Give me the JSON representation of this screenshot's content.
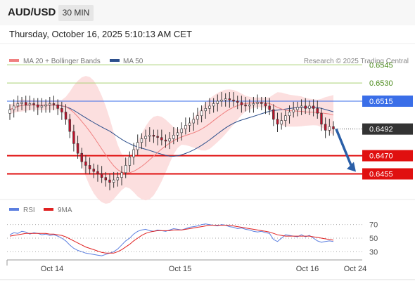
{
  "header": {
    "pair": "AUD/USD",
    "timeframe": "30 MIN",
    "datetime": "Thursday, October 16, 2025 5:10:13 AM CET"
  },
  "legend": {
    "ma20": "MA 20 + Bollinger Bands",
    "ma50": "MA 50",
    "credit": "Research © 2025 Trading Central",
    "rsi": "RSI",
    "ma9": "9MA"
  },
  "colors": {
    "ma20": "#f08080",
    "ma50": "#2c4f8c",
    "bands": "#fbd9d9",
    "resistance": "#a8d070",
    "pivot": "#3a6ee8",
    "support": "#e01010",
    "price_box": "#333333",
    "up_candle": "#ffffff",
    "down_candle": "#c0102a",
    "arrow": "#2a5fa8",
    "rsi": "#5b7fe0",
    "rsi_ma": "#e02020"
  },
  "chart_data": [
    {
      "type": "candlestick",
      "x_labels": [
        "Oct 14",
        "Oct 15",
        "Oct 16",
        "Oct 24"
      ],
      "ylim": [
        0.6435,
        0.6555
      ],
      "levels": [
        {
          "label": "0.6545",
          "value": 0.6545,
          "kind": "resistance"
        },
        {
          "label": "0.6530",
          "value": 0.653,
          "kind": "resistance"
        },
        {
          "label": "0.6515",
          "value": 0.6515,
          "kind": "pivot"
        },
        {
          "label": "0.6470",
          "value": 0.647,
          "kind": "support"
        },
        {
          "label": "0.6455",
          "value": 0.6455,
          "kind": "support"
        }
      ],
      "last_price": {
        "label": "0.6492",
        "value": 0.6492
      },
      "close_series": [
        0.6508,
        0.6511,
        0.6513,
        0.6514,
        0.6512,
        0.6513,
        0.6512,
        0.651,
        0.6511,
        0.6512,
        0.6513,
        0.6512,
        0.6509,
        0.6506,
        0.65,
        0.649,
        0.648,
        0.6472,
        0.6465,
        0.6462,
        0.6459,
        0.6457,
        0.6455,
        0.6452,
        0.645,
        0.6448,
        0.645,
        0.6452,
        0.6456,
        0.6462,
        0.6469,
        0.6475,
        0.6481,
        0.6484,
        0.6486,
        0.6487,
        0.6486,
        0.6485,
        0.6483,
        0.6482,
        0.6484,
        0.6487,
        0.6489,
        0.6492,
        0.6495,
        0.6497,
        0.65,
        0.6503,
        0.6507,
        0.6509,
        0.6511,
        0.6513,
        0.6515,
        0.6516,
        0.6517,
        0.6516,
        0.6515,
        0.6514,
        0.6512,
        0.6511,
        0.6512,
        0.6513,
        0.6514,
        0.6513,
        0.6511,
        0.6508,
        0.65,
        0.6496,
        0.6499,
        0.6503,
        0.6506,
        0.6508,
        0.651,
        0.6511,
        0.6509,
        0.6511,
        0.6509,
        0.6505,
        0.6496,
        0.6491,
        0.6494,
        0.6492
      ],
      "series": [
        {
          "name": "MA 20 + Bollinger Bands"
        },
        {
          "name": "MA 50"
        }
      ]
    },
    {
      "type": "line",
      "y_ticks": [
        70,
        50,
        30
      ],
      "ylim": [
        20,
        80
      ],
      "series": [
        {
          "name": "RSI",
          "values": [
            55,
            58,
            57,
            60,
            59,
            56,
            58,
            57,
            55,
            56,
            54,
            55,
            53,
            50,
            46,
            40,
            35,
            32,
            30,
            28,
            27,
            26,
            25,
            24,
            26,
            28,
            30,
            34,
            40,
            46,
            50,
            56,
            60,
            62,
            63,
            61,
            60,
            62,
            61,
            60,
            62,
            64,
            63,
            62,
            64,
            66,
            67,
            68,
            70,
            71,
            70,
            69,
            68,
            70,
            69,
            67,
            66,
            64,
            65,
            63,
            62,
            60,
            59,
            60,
            58,
            57,
            48,
            45,
            50,
            55,
            54,
            53,
            52,
            55,
            52,
            54,
            50,
            46,
            44,
            45,
            46,
            45
          ]
        },
        {
          "name": "9MA",
          "values": [
            53,
            54,
            55,
            56,
            57,
            57,
            57,
            57,
            57,
            57,
            56,
            56,
            55,
            54,
            52,
            49,
            46,
            43,
            40,
            37,
            35,
            33,
            31,
            29,
            28,
            28,
            28,
            30,
            33,
            37,
            41,
            46,
            50,
            54,
            57,
            59,
            60,
            61,
            61,
            61,
            61,
            62,
            62,
            62,
            63,
            64,
            65,
            66,
            67,
            68,
            69,
            69,
            69,
            69,
            69,
            69,
            68,
            67,
            66,
            65,
            64,
            63,
            62,
            61,
            60,
            59,
            57,
            55,
            54,
            53,
            53,
            53,
            53,
            53,
            53,
            53,
            52,
            51,
            50,
            49,
            48,
            47
          ]
        }
      ]
    }
  ]
}
